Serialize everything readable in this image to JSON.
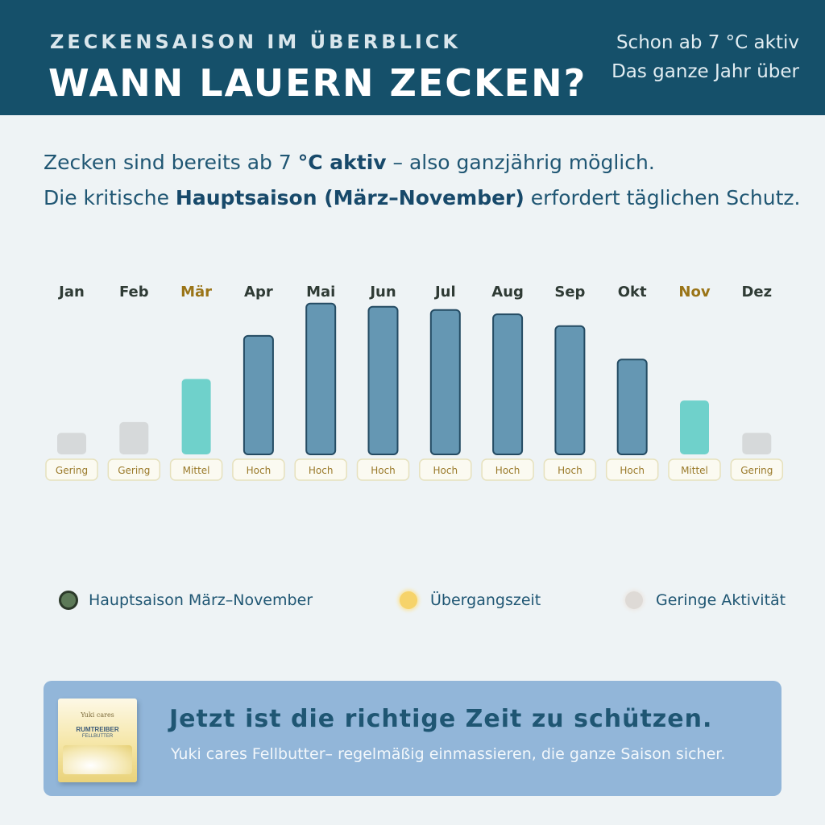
{
  "header": {
    "kicker": "ZECKENSAISON IM ÜBERBLICK",
    "headline": "WANN LAUERN ZECKEN?",
    "note_line1": "Schon ab 7 °C aktiv",
    "note_line2": "Das ganze Jahr über"
  },
  "intro": {
    "line1_a": "Zecken sind bereits ab 7 ",
    "line1_b": "°C aktiv",
    "line1_c": " – also ganzjährig möglich.",
    "line2_a": "Die kritische ",
    "line2_b": "Hauptsaison (März–November)",
    "line2_c": " erfordert täglichen Schutz."
  },
  "colors": {
    "high": "#6597b3",
    "mid": "#6fd1cb",
    "low": "#d6d9da",
    "month_mid_text": "#9a7417",
    "month_text": "#2f3b35",
    "badge_text": "#9a7a2a"
  },
  "chart_data": {
    "type": "bar",
    "categories": [
      "Jan",
      "Feb",
      "Mär",
      "Apr",
      "Mai",
      "Jun",
      "Jul",
      "Aug",
      "Sep",
      "Okt",
      "Nov",
      "Dez"
    ],
    "values": [
      2,
      3,
      7,
      11,
      14,
      13.7,
      13.4,
      13,
      11.9,
      8.8,
      5,
      2
    ],
    "levels": [
      "Gering",
      "Gering",
      "Mittel",
      "Hoch",
      "Hoch",
      "Hoch",
      "Hoch",
      "Hoch",
      "Hoch",
      "Hoch",
      "Mittel",
      "Gering"
    ],
    "ylim": [
      0,
      14.5
    ],
    "grid": false,
    "legend": [
      {
        "label": "Hauptsaison März–November",
        "color": "#5d7a58"
      },
      {
        "label": "Übergangszeit",
        "color": "#f6d36a"
      },
      {
        "label": "Geringe Aktivität",
        "color": "#dedad6"
      }
    ]
  },
  "cta": {
    "product_brand": "Yuki cares",
    "product_name": "RUMTREIBER",
    "product_sub": "FELLBUTTER",
    "title": "Jetzt ist die richtige Zeit zu schützen.",
    "text": "Yuki cares Fellbutter– regelmäßig einmassieren, die ganze Saison sicher."
  }
}
